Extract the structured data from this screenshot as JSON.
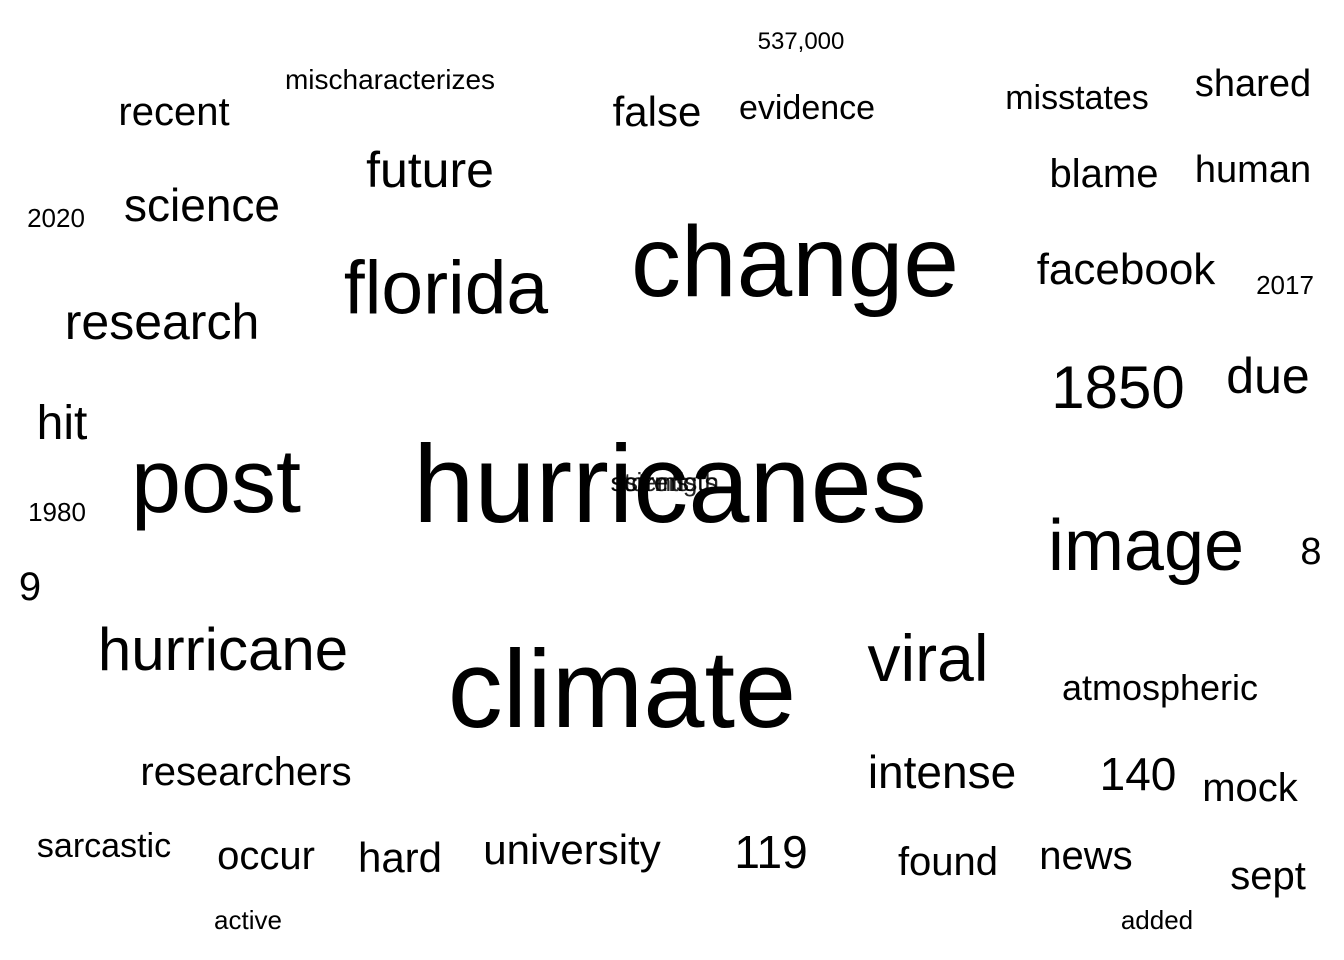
{
  "words": [
    {
      "text": "hurricanes",
      "weight": 110
    },
    {
      "text": "climate",
      "weight": 110
    },
    {
      "text": "change",
      "weight": 100
    },
    {
      "text": "post",
      "weight": 90
    },
    {
      "text": "image",
      "weight": 72
    },
    {
      "text": "florida",
      "weight": 75
    },
    {
      "text": "viral",
      "weight": 66
    },
    {
      "text": "hurricane",
      "weight": 60
    },
    {
      "text": "1850",
      "weight": 60
    },
    {
      "text": "due",
      "weight": 50
    },
    {
      "text": "research",
      "weight": 50
    },
    {
      "text": "future",
      "weight": 50
    },
    {
      "text": "hit",
      "weight": 48
    },
    {
      "text": "science",
      "weight": 46
    },
    {
      "text": "facebook",
      "weight": 44
    },
    {
      "text": "intense",
      "weight": 46
    },
    {
      "text": "140",
      "weight": 46
    },
    {
      "text": "119",
      "weight": 46
    },
    {
      "text": "researchers",
      "weight": 40
    },
    {
      "text": "university",
      "weight": 42
    },
    {
      "text": "false",
      "weight": 42
    },
    {
      "text": "recent",
      "weight": 40
    },
    {
      "text": "blame",
      "weight": 40
    },
    {
      "text": "human",
      "weight": 38
    },
    {
      "text": "shared",
      "weight": 38
    },
    {
      "text": "occur",
      "weight": 40
    },
    {
      "text": "hard",
      "weight": 42
    },
    {
      "text": "found",
      "weight": 40
    },
    {
      "text": "news",
      "weight": 40
    },
    {
      "text": "sept",
      "weight": 40
    },
    {
      "text": "mock",
      "weight": 40
    },
    {
      "text": "9",
      "weight": 40
    },
    {
      "text": "8",
      "weight": 38
    },
    {
      "text": "atmospheric",
      "weight": 36
    },
    {
      "text": "sarcastic",
      "weight": 34
    },
    {
      "text": "evidence",
      "weight": 34
    },
    {
      "text": "misstates",
      "weight": 34
    },
    {
      "text": "mischaracterizes",
      "weight": 28
    },
    {
      "text": "2020",
      "weight": 26
    },
    {
      "text": "1980",
      "weight": 26
    },
    {
      "text": "2017",
      "weight": 26
    },
    {
      "text": "active",
      "weight": 26
    },
    {
      "text": "added",
      "weight": 26
    },
    {
      "text": "537,000",
      "weight": 24
    },
    {
      "text": "storms",
      "weight": 26
    },
    {
      "text": "scientists",
      "weight": 26
    },
    {
      "text": "strength",
      "weight": 26
    }
  ]
}
